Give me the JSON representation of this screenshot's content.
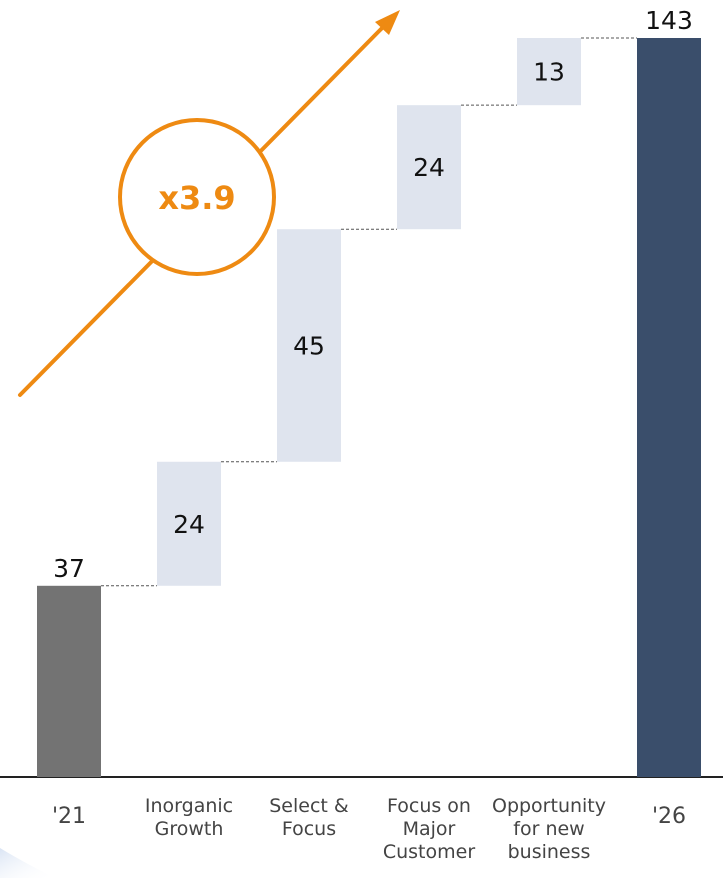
{
  "chart_data": {
    "type": "waterfall",
    "categories": [
      "'21",
      "Inorganic Growth",
      "Select & Focus",
      "Focus on Major Customer",
      "Opportunity for new business",
      "'26"
    ],
    "category_label_lines": [
      [
        "'21"
      ],
      [
        "Inorganic",
        "Growth"
      ],
      [
        "Select &",
        "Focus"
      ],
      [
        "Focus on",
        "Major",
        "Customer"
      ],
      [
        "Opportunity",
        "for new",
        "business"
      ],
      [
        "'26"
      ]
    ],
    "values": [
      37,
      24,
      45,
      24,
      13,
      143
    ],
    "bar_kinds": [
      "total",
      "increment",
      "increment",
      "increment",
      "increment",
      "total"
    ],
    "data_labels": [
      "37",
      "24",
      "45",
      "24",
      "13",
      "143"
    ],
    "ylim": [
      0,
      143
    ],
    "annotation": {
      "text": "x3.9"
    },
    "colors": {
      "start_total": "#737373",
      "end_total": "#3a4e6b",
      "increment": "#dfe4ee",
      "annotation": "#ee8a12",
      "axis": "#222222",
      "text": "#111111",
      "category_text": "#444444"
    }
  }
}
